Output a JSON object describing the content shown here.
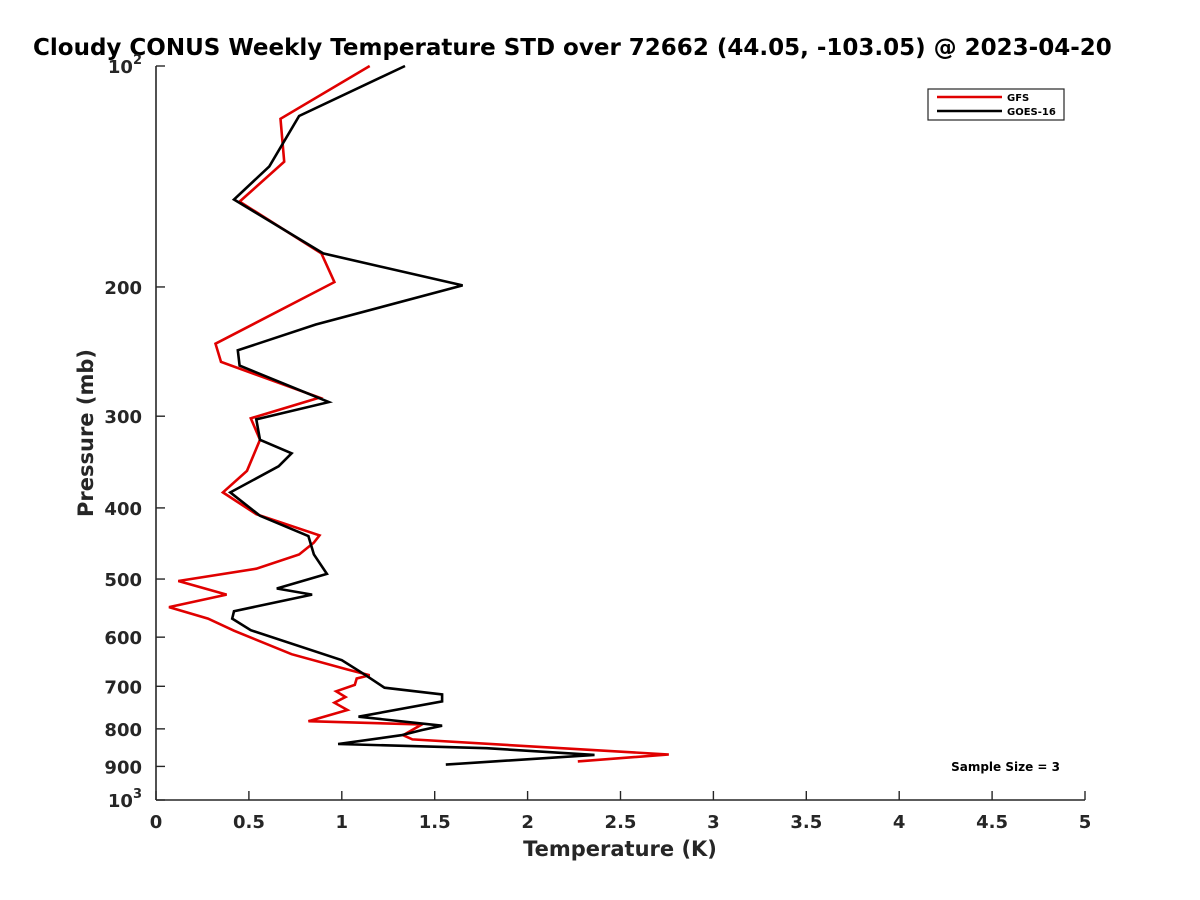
{
  "chart_data": {
    "type": "line",
    "title": "Cloudy CONUS Weekly Temperature STD over 72662 (44.05, -103.05) @ 2023-04-20",
    "xlabel": "Temperature (K)",
    "ylabel": "Pressure (mb)",
    "xlim": [
      0,
      5
    ],
    "ylim": [
      100,
      1000
    ],
    "y_scale": "log",
    "y_reversed": true,
    "x_ticks": [
      "0",
      "0.5",
      "1",
      "1.5",
      "2",
      "2.5",
      "3",
      "3.5",
      "4",
      "4.5",
      "5"
    ],
    "y_ticks": [
      {
        "value": 100,
        "base": "10",
        "exp": "2"
      },
      {
        "value": 200,
        "label": "200"
      },
      {
        "value": 300,
        "label": "300"
      },
      {
        "value": 400,
        "label": "400"
      },
      {
        "value": 500,
        "label": "500"
      },
      {
        "value": 600,
        "label": "600"
      },
      {
        "value": 700,
        "label": "700"
      },
      {
        "value": 800,
        "label": "800"
      },
      {
        "value": 900,
        "label": "900"
      },
      {
        "value": 1000,
        "base": "10",
        "exp": "3"
      }
    ],
    "grid": false,
    "legend_position": "top-right",
    "annotation": "Sample Size = 3",
    "series": [
      {
        "name": "GFS",
        "color": "#e00000",
        "points": [
          [
            1.15,
            100
          ],
          [
            0.67,
            118
          ],
          [
            0.69,
            135
          ],
          [
            0.45,
            153
          ],
          [
            0.89,
            180
          ],
          [
            0.96,
            197
          ],
          [
            0.32,
            239
          ],
          [
            0.35,
            253
          ],
          [
            0.88,
            283
          ],
          [
            0.51,
            302
          ],
          [
            0.56,
            323
          ],
          [
            0.49,
            356
          ],
          [
            0.36,
            381
          ],
          [
            0.54,
            408
          ],
          [
            0.88,
            436
          ],
          [
            0.85,
            446
          ],
          [
            0.77,
            463
          ],
          [
            0.54,
            484
          ],
          [
            0.12,
            503
          ],
          [
            0.38,
            525
          ],
          [
            0.07,
            546
          ],
          [
            0.28,
            566
          ],
          [
            0.42,
            588
          ],
          [
            0.73,
            633
          ],
          [
            1.03,
            664
          ],
          [
            1.15,
            676
          ],
          [
            1.08,
            683
          ],
          [
            1.07,
            697
          ],
          [
            0.97,
            711
          ],
          [
            1.02,
            724
          ],
          [
            0.96,
            737
          ],
          [
            1.03,
            754
          ],
          [
            0.82,
            781
          ],
          [
            1.43,
            789
          ],
          [
            1.33,
            816
          ],
          [
            1.38,
            827
          ],
          [
            2.76,
            867
          ],
          [
            2.27,
            886
          ]
        ]
      },
      {
        "name": "GOES-16",
        "color": "#000000",
        "points": [
          [
            1.34,
            100
          ],
          [
            0.77,
            117
          ],
          [
            0.61,
            137
          ],
          [
            0.42,
            152
          ],
          [
            0.9,
            180
          ],
          [
            1.65,
            199
          ],
          [
            0.86,
            225
          ],
          [
            0.44,
            244
          ],
          [
            0.45,
            256
          ],
          [
            0.93,
            287
          ],
          [
            0.54,
            303
          ],
          [
            0.56,
            323
          ],
          [
            0.73,
            337
          ],
          [
            0.66,
            351
          ],
          [
            0.4,
            381
          ],
          [
            0.56,
            410
          ],
          [
            0.82,
            437
          ],
          [
            0.85,
            463
          ],
          [
            0.92,
            492
          ],
          [
            0.65,
            515
          ],
          [
            0.84,
            525
          ],
          [
            0.42,
            553
          ],
          [
            0.41,
            566
          ],
          [
            0.51,
            587
          ],
          [
            1.0,
            645
          ],
          [
            1.12,
            674
          ],
          [
            1.23,
            703
          ],
          [
            1.54,
            718
          ],
          [
            1.54,
            734
          ],
          [
            1.09,
            770
          ],
          [
            1.54,
            792
          ],
          [
            1.43,
            803
          ],
          [
            1.32,
            816
          ],
          [
            0.98,
            839
          ],
          [
            1.78,
            850
          ],
          [
            2.36,
            868
          ],
          [
            1.56,
            895
          ]
        ]
      }
    ]
  }
}
